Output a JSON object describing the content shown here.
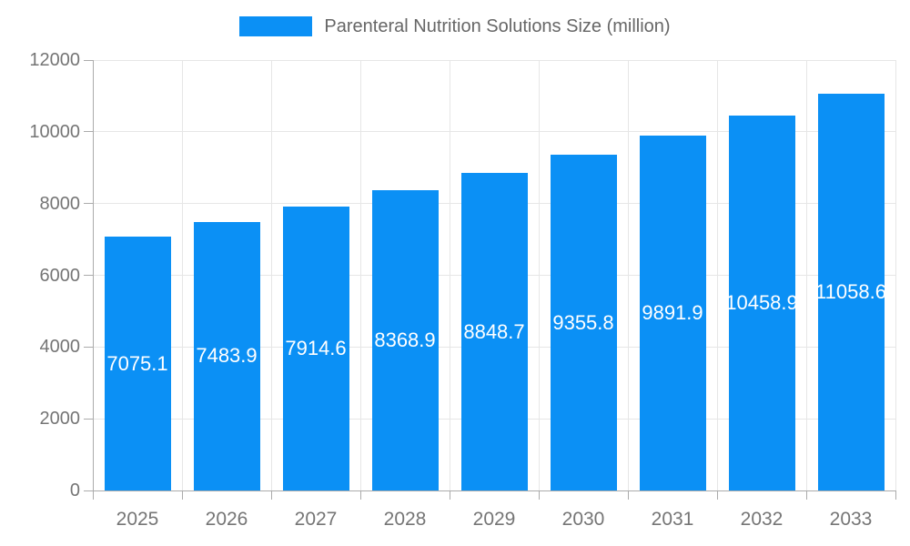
{
  "legend": {
    "label": "Parenteral Nutrition Solutions Size (million)"
  },
  "chart_data": {
    "type": "bar",
    "title": "Parenteral Nutrition Solutions Size (million)",
    "categories": [
      "2025",
      "2026",
      "2027",
      "2028",
      "2029",
      "2030",
      "2031",
      "2032",
      "2033"
    ],
    "values": [
      7075.1,
      7483.9,
      7914.6,
      8368.9,
      8848.7,
      9355.8,
      9891.9,
      10458.9,
      11058.6
    ],
    "value_labels": [
      "7075.1",
      "7483.9",
      "7914.6",
      "8368.9",
      "8848.7",
      "9355.8",
      "9891.9",
      "10458.9",
      "11058.6"
    ],
    "xlabel": "",
    "ylabel": "",
    "ylim": [
      0,
      12000
    ],
    "ytick_step": 2000,
    "ytick_labels": [
      "0",
      "2000",
      "4000",
      "6000",
      "8000",
      "10000",
      "12000"
    ],
    "grid": true,
    "legend_position": "top",
    "colors": {
      "bar": "#0b90f5",
      "value_label": "#ffffff",
      "grid": "#e6e6e6",
      "axis": "#ababab",
      "tick_label": "#757575",
      "legend_text": "#666666"
    }
  }
}
